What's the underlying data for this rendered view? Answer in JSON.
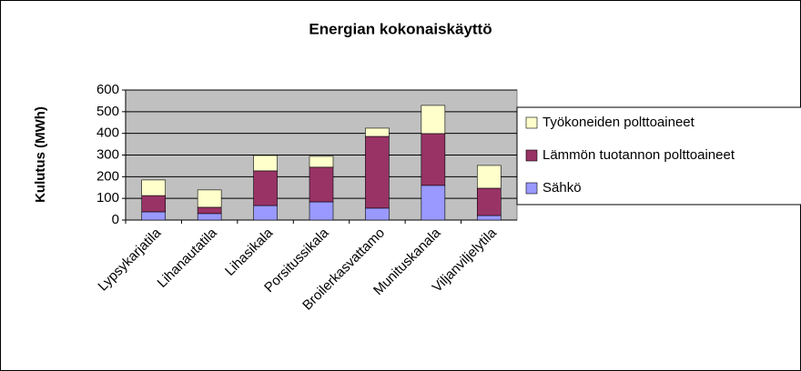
{
  "chart_data": {
    "type": "stacked_bar",
    "title": "Energian kokonaiskäyttö",
    "y_label": "Kulutus (MWh)",
    "categories": [
      "Lypsykarjatila",
      "Lihanautatila",
      "Lihasikala",
      "Porsitussikala",
      "Broilerkasvattamo",
      "Munituskanala",
      "Viljanviljelytila"
    ],
    "series": [
      {
        "name": "Sähkö",
        "color": "#9999ff",
        "values": [
          38,
          30,
          67,
          84,
          55,
          160,
          21
        ]
      },
      {
        "name": "Lämmön tuotannon polttoaineet",
        "color": "#993366",
        "values": [
          75,
          29,
          160,
          160,
          331,
          239,
          126
        ]
      },
      {
        "name": "Työkoneiden polttoaineet",
        "color": "#ffffcc",
        "values": [
          72,
          80,
          71,
          50,
          38,
          130,
          105
        ]
      }
    ],
    "ylim": [
      0,
      600
    ],
    "yticks": [
      0,
      100,
      200,
      300,
      400,
      500,
      600
    ],
    "grid": true,
    "legend": "right"
  }
}
